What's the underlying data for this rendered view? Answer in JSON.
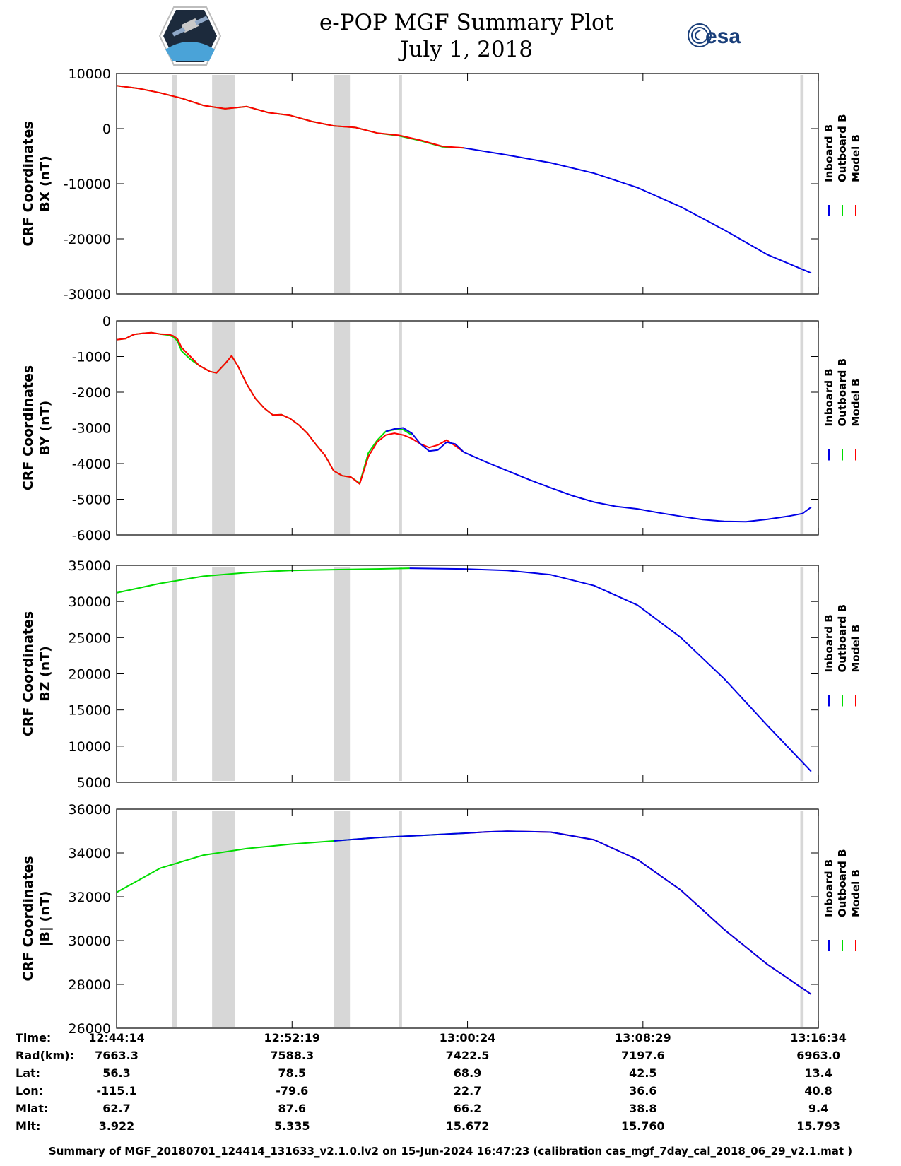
{
  "title": "e-POP MGF Summary Plot",
  "date": "July 1, 2018",
  "logos": {
    "mission_logo": "e-POP CASSIOPE mission patch",
    "agency_text": "esa"
  },
  "colors": {
    "inboard": "#0000e6",
    "outboard": "#00dd00",
    "model": "#ff0000",
    "gap": "#d7d7d7"
  },
  "legend": [
    "Inboard B",
    "Outboard B",
    "Model B"
  ],
  "chart_data": [
    {
      "type": "line",
      "ylabel": [
        "CRF Coordinates",
        "BX (nT)"
      ],
      "ylim": [
        -30000,
        10000
      ],
      "yticks": [
        10000,
        0,
        -10000,
        -20000,
        -30000
      ],
      "ytick_labels": [
        "10000",
        "0",
        "-10000",
        "-20000",
        "-30000"
      ],
      "x_minutes": [
        0,
        1,
        2,
        3,
        4,
        5,
        6,
        7,
        8,
        9,
        10,
        11,
        12,
        13,
        14,
        15,
        16,
        18,
        20,
        22,
        24,
        26,
        28,
        30,
        32
      ],
      "series": [
        {
          "name": "Outboard B",
          "x": [
            0,
            1,
            2,
            3,
            4,
            5,
            6,
            7,
            8,
            9,
            10,
            11,
            12,
            13,
            14,
            15,
            16
          ],
          "values": [
            7800,
            7300,
            6500,
            5500,
            4200,
            3600,
            4000,
            2900,
            2400,
            1300,
            500,
            200,
            -800,
            -1300,
            -2200,
            -3300,
            -3500
          ]
        },
        {
          "name": "Model B",
          "x": [
            0,
            1,
            2,
            3,
            4,
            5,
            6,
            7,
            8,
            9,
            10,
            11,
            12,
            13,
            14,
            15,
            16
          ],
          "values": [
            7800,
            7300,
            6500,
            5500,
            4200,
            3600,
            4000,
            2900,
            2400,
            1300,
            500,
            200,
            -800,
            -1200,
            -2100,
            -3200,
            -3500
          ]
        },
        {
          "name": "Inboard B",
          "x": [
            16,
            18,
            20,
            22,
            24,
            26,
            28,
            30,
            32
          ],
          "values": [
            -3500,
            -4800,
            -6200,
            -8100,
            -10700,
            -14200,
            -18400,
            -22900,
            -26200
          ]
        }
      ]
    },
    {
      "type": "line",
      "ylabel": [
        "CRF Coordinates",
        "BY (nT)"
      ],
      "ylim": [
        -6000,
        0
      ],
      "yticks": [
        0,
        -1000,
        -2000,
        -3000,
        -4000,
        -5000,
        -6000
      ],
      "ytick_labels": [
        "0",
        "-1000",
        "-2000",
        "-3000",
        "-4000",
        "-5000",
        "-6000"
      ],
      "series": [
        {
          "name": "Outboard B",
          "x": [
            0,
            0.4,
            0.8,
            1.2,
            1.6,
            2.0,
            2.4,
            2.6,
            2.8,
            3.0,
            3.4,
            3.8,
            4.3,
            4.6,
            5.0,
            5.3,
            5.6,
            6.0,
            6.4,
            6.8,
            7.2,
            7.6,
            8.0,
            8.4,
            8.8,
            9.2,
            9.6,
            10.0,
            10.4,
            10.8,
            11.2,
            11.6,
            12.0,
            12.4,
            12.8,
            13.2,
            13.6
          ],
          "values": [
            -530,
            -500,
            -380,
            -350,
            -330,
            -370,
            -400,
            -450,
            -560,
            -850,
            -1080,
            -1250,
            -1420,
            -1460,
            -1200,
            -980,
            -1280,
            -1780,
            -2180,
            -2450,
            -2640,
            -2630,
            -2740,
            -2920,
            -3160,
            -3480,
            -3770,
            -4200,
            -4340,
            -4380,
            -4550,
            -3700,
            -3350,
            -3100,
            -3050,
            -3050,
            -3200
          ]
        },
        {
          "name": "Model B",
          "x": [
            0,
            0.4,
            0.8,
            1.2,
            1.6,
            2.0,
            2.4,
            2.6,
            2.8,
            3.0,
            3.4,
            3.8,
            4.3,
            4.6,
            5.0,
            5.3,
            5.6,
            6.0,
            6.4,
            6.8,
            7.2,
            7.6,
            8.0,
            8.4,
            8.8,
            9.2,
            9.6,
            10.0,
            10.4,
            10.8,
            11.2,
            11.6,
            12.0,
            12.4,
            12.8,
            13.2,
            13.6,
            14.0,
            14.4,
            14.8,
            15.2,
            15.6,
            16.0
          ],
          "values": [
            -530,
            -500,
            -380,
            -350,
            -330,
            -370,
            -380,
            -420,
            -500,
            -750,
            -1000,
            -1250,
            -1420,
            -1460,
            -1200,
            -980,
            -1280,
            -1780,
            -2180,
            -2450,
            -2640,
            -2630,
            -2740,
            -2920,
            -3160,
            -3480,
            -3770,
            -4200,
            -4340,
            -4380,
            -4570,
            -3800,
            -3400,
            -3200,
            -3150,
            -3200,
            -3300,
            -3450,
            -3550,
            -3480,
            -3340,
            -3500,
            -3680
          ]
        },
        {
          "name": "Inboard B",
          "x": [
            12.4,
            12.8,
            13.2,
            13.6,
            14.0,
            14.4,
            14.8,
            15.2,
            15.6,
            16.0,
            17.0,
            18.0,
            19.0,
            20.0,
            21.0,
            22.0,
            23.0,
            24.0,
            25.0,
            26.0,
            27.0,
            28.0,
            29.0,
            30.0,
            31.0,
            31.6,
            32.0
          ],
          "values": [
            -3100,
            -3030,
            -3000,
            -3150,
            -3450,
            -3650,
            -3620,
            -3400,
            -3450,
            -3680,
            -3950,
            -4200,
            -4450,
            -4680,
            -4900,
            -5080,
            -5200,
            -5270,
            -5380,
            -5480,
            -5570,
            -5620,
            -5630,
            -5560,
            -5470,
            -5400,
            -5220
          ]
        }
      ]
    },
    {
      "type": "line",
      "ylabel": [
        "CRF Coordinates",
        "BZ (nT)"
      ],
      "ylim": [
        5000,
        35000
      ],
      "yticks": [
        35000,
        30000,
        25000,
        20000,
        15000,
        10000,
        5000
      ],
      "ytick_labels": [
        "35000",
        "30000",
        "25000",
        "20000",
        "15000",
        "10000",
        "5000"
      ],
      "series": [
        {
          "name": "Outboard B",
          "x": [
            0,
            2,
            4,
            6,
            8,
            10,
            12,
            13.5
          ],
          "values": [
            31200,
            32500,
            33500,
            34000,
            34300,
            34400,
            34500,
            34600
          ]
        },
        {
          "name": "Inboard B",
          "x": [
            13.5,
            16,
            18,
            20,
            22,
            24,
            26,
            28,
            30,
            32
          ],
          "values": [
            34600,
            34500,
            34300,
            33700,
            32200,
            29500,
            25000,
            19300,
            12800,
            6500
          ]
        }
      ]
    },
    {
      "type": "line",
      "ylabel": [
        "CRF Coordinates",
        "|B| (nT)"
      ],
      "ylim": [
        26000,
        36000
      ],
      "yticks": [
        36000,
        34000,
        32000,
        30000,
        28000,
        26000
      ],
      "ytick_labels": [
        "36000",
        "34000",
        "32000",
        "30000",
        "28000",
        "26000"
      ],
      "series": [
        {
          "name": "Outboard B",
          "x": [
            0,
            2,
            4,
            6,
            8,
            10,
            12,
            14,
            16
          ],
          "values": [
            32200,
            33300,
            33900,
            34200,
            34400,
            34550,
            34700,
            34800,
            34900
          ]
        },
        {
          "name": "Model B",
          "x": [
            16,
            17,
            18,
            20,
            22,
            24,
            26,
            28,
            30,
            32
          ],
          "values": [
            34900,
            34960,
            34990,
            34950,
            34600,
            33700,
            32300,
            30500,
            28900,
            27550
          ]
        },
        {
          "name": "Inboard B",
          "x": [
            10,
            12,
            14,
            16,
            17,
            18,
            20,
            22,
            24,
            26,
            28,
            30,
            32
          ],
          "values": [
            34550,
            34700,
            34800,
            34900,
            34960,
            34990,
            34950,
            34600,
            33700,
            32300,
            30500,
            28900,
            27550
          ]
        }
      ]
    }
  ],
  "x_axis": {
    "xlim": [
      0,
      32.33
    ],
    "tick_minutes": [
      0,
      8.083,
      16.167,
      24.25,
      32.333
    ]
  },
  "gaps_minutes": [
    [
      2.55,
      2.8
    ],
    [
      4.4,
      5.0
    ],
    [
      5.0,
      5.45
    ],
    [
      10.0,
      10.75
    ],
    [
      13.0,
      13.15
    ],
    [
      31.5,
      31.65
    ]
  ],
  "ephemeris": {
    "labels": [
      "Time:",
      "Rad(km):",
      "Lat:",
      "Lon:",
      "Mlat:",
      "Mlt:"
    ],
    "columns": [
      [
        "12:44:14",
        "7663.3",
        "56.3",
        "-115.1",
        "62.7",
        "3.922"
      ],
      [
        "12:52:19",
        "7588.3",
        "78.5",
        "-79.6",
        "87.6",
        "5.335"
      ],
      [
        "13:00:24",
        "7422.5",
        "68.9",
        "22.7",
        "66.2",
        "15.672"
      ],
      [
        "13:08:29",
        "7197.6",
        "42.5",
        "36.6",
        "38.8",
        "15.760"
      ],
      [
        "13:16:34",
        "6963.0",
        "13.4",
        "40.8",
        "9.4",
        "15.793"
      ]
    ]
  },
  "footer": "Summary of MGF_20180701_124414_131633_v2.1.0.lv2 on 15-Jun-2024 16:47:23 (calibration cas_mgf_7day_cal_2018_06_29_v2.1.mat )"
}
